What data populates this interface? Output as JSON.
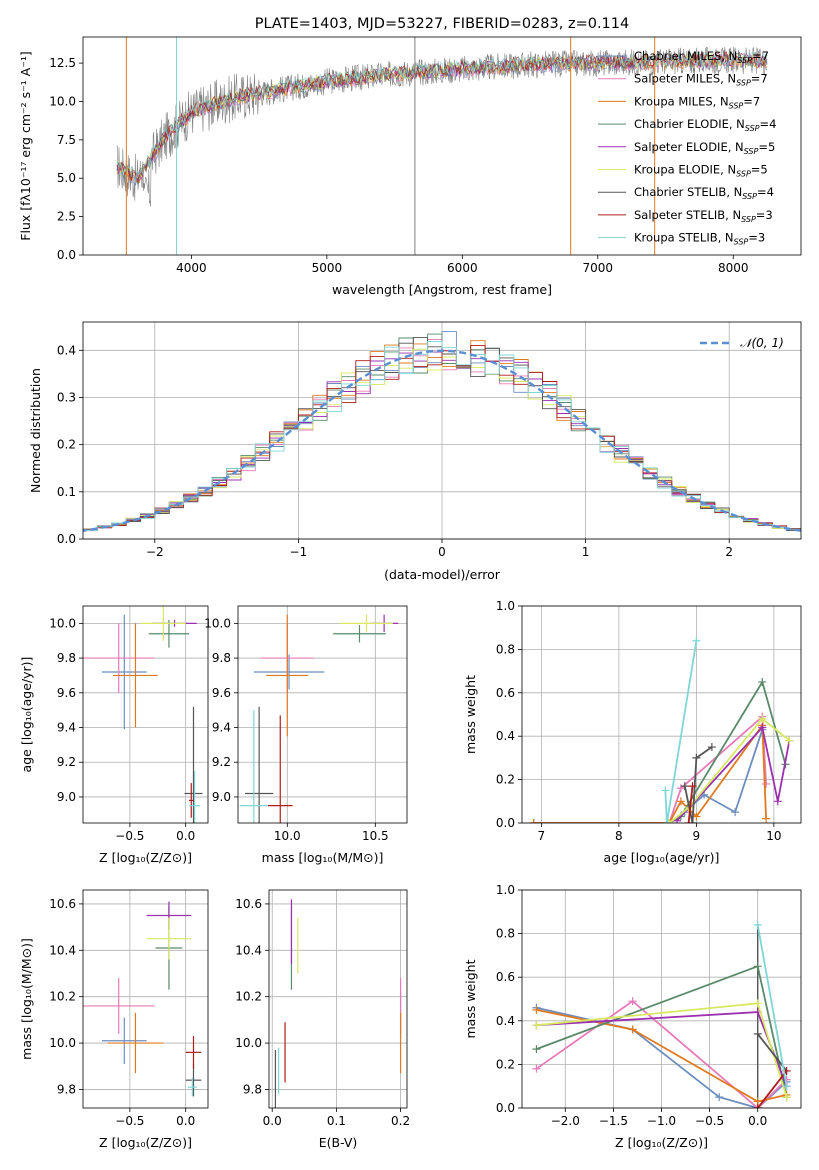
{
  "colors": {
    "chabrier_miles": "#6c8ebf",
    "salpeter_miles": "#e87ab8",
    "kroupa_miles": "#e07a1f",
    "chabrier_elodie": "#5a8a6a",
    "salpeter_elodie": "#9b30b0",
    "kroupa_elodie": "#d8e860",
    "chabrier_stelib": "#555555",
    "salpeter_stelib": "#b01c1c",
    "kroupa_stelib": "#7fd6d6",
    "spectrum": "#808080",
    "normal": "#5b8fd4",
    "grid": "#b0b0b0"
  },
  "chart_data": [
    {
      "type": "line",
      "id": "spectrum",
      "title": "PLATE=1403, MJD=53227, FIBERID=0283, z=0.114",
      "xlabel": "wavelength [Angstrom, rest frame]",
      "ylabel": "Flux [fλ10⁻¹⁷ erg cm⁻² s⁻¹ A⁻¹]",
      "xlim": [
        3200,
        8500
      ],
      "ylim": [
        0,
        14.2
      ],
      "xticks": [
        "4000",
        "5000",
        "6000",
        "7000",
        "8000"
      ],
      "yticks": [
        "0.0",
        "2.5",
        "5.0",
        "7.5",
        "10.0",
        "12.5"
      ],
      "legend_position": "right",
      "series": [
        {
          "name": "Chabrier MILES, N",
          "sub": "SSP",
          "suffix": "=7"
        },
        {
          "name": "Salpeter MILES, N",
          "sub": "SSP",
          "suffix": "=7"
        },
        {
          "name": "Kroupa MILES, N",
          "sub": "SSP",
          "suffix": "=7"
        },
        {
          "name": "Chabrier ELODIE, N",
          "sub": "SSP",
          "suffix": "=4"
        },
        {
          "name": "Salpeter ELODIE, N",
          "sub": "SSP",
          "suffix": "=5"
        },
        {
          "name": "Kroupa ELODIE, N",
          "sub": "SSP",
          "suffix": "=5"
        },
        {
          "name": "Chabrier STELIB, N",
          "sub": "SSP",
          "suffix": "=4"
        },
        {
          "name": "Salpeter STELIB, N",
          "sub": "SSP",
          "suffix": "=3"
        },
        {
          "name": "Kroupa STELIB, N",
          "sub": "SSP",
          "suffix": "=3"
        }
      ],
      "continuum": {
        "x": [
          3450,
          3600,
          3800,
          4000,
          4300,
          4600,
          5000,
          5500,
          6000,
          6500,
          7000,
          7500,
          8000,
          8250
        ],
        "y": [
          5.8,
          4.9,
          7.6,
          9.3,
          10.2,
          10.7,
          11.3,
          11.8,
          12.1,
          12.4,
          12.5,
          12.6,
          12.7,
          12.6
        ]
      }
    },
    {
      "type": "bar",
      "id": "residuals",
      "xlabel": "(data-model)/error",
      "ylabel": "Normed distribution",
      "xlim": [
        -2.5,
        2.5
      ],
      "ylim": [
        0,
        0.46
      ],
      "xticks": [
        "−2",
        "−1",
        "0",
        "1",
        "2"
      ],
      "yticks": [
        "0.0",
        "0.1",
        "0.2",
        "0.3",
        "0.4"
      ],
      "legend": "𝒩(0, 1)",
      "bin_width": 0.1,
      "grid": true
    },
    {
      "type": "scatter",
      "id": "age_vs_Z",
      "xlabel": "Z [log₁₀(Z/Z⊙)]",
      "ylabel": "age  [log₁₀(age/yr)]",
      "xlim": [
        -0.92,
        0.2
      ],
      "ylim": [
        8.85,
        10.1
      ],
      "xticks": [
        "−0.5",
        "0.0"
      ],
      "yticks": [
        "9.0",
        "9.2",
        "9.4",
        "9.6",
        "9.8",
        "10.0"
      ],
      "points": [
        {
          "c": "chabrier_miles",
          "x": -0.55,
          "ex": 0.2,
          "y": 9.72,
          "ey": 0.33
        },
        {
          "c": "salpeter_miles",
          "x": -0.6,
          "ex": 0.32,
          "y": 9.8,
          "ey": 0.2
        },
        {
          "c": "kroupa_miles",
          "x": -0.45,
          "ex": 0.2,
          "y": 9.7,
          "ey": 0.3
        },
        {
          "c": "chabrier_elodie",
          "x": -0.15,
          "ex": 0.18,
          "y": 9.94,
          "ey": 0.08
        },
        {
          "c": "salpeter_elodie",
          "x": -0.1,
          "ex": 0.2,
          "y": 10.0,
          "ey": 0.02
        },
        {
          "c": "kroupa_elodie",
          "x": -0.2,
          "ex": 0.2,
          "y": 10.0,
          "ey": 0.1
        },
        {
          "c": "chabrier_stelib",
          "x": 0.07,
          "ex": 0.08,
          "y": 9.02,
          "ey": 0.5
        },
        {
          "c": "salpeter_stelib",
          "x": 0.05,
          "ex": 0.02,
          "y": 8.98,
          "ey": 0.1
        },
        {
          "c": "kroupa_stelib",
          "x": 0.08,
          "ex": 0.05,
          "y": 8.95,
          "ey": 0.2
        }
      ]
    },
    {
      "type": "scatter",
      "id": "age_vs_mass",
      "xlabel": "mass [log₁₀(M/M⊙)]",
      "ylabel": "",
      "xlim": [
        9.72,
        10.68
      ],
      "ylim": [
        8.85,
        10.1
      ],
      "xticks": [
        "10.0",
        "10.5"
      ],
      "yticks": [
        "9.0",
        "9.2",
        "9.4",
        "9.6",
        "9.8",
        "10.0"
      ],
      "points": [
        {
          "c": "chabrier_miles",
          "x": 10.01,
          "ex": 0.2,
          "y": 9.72,
          "ey": 0.1
        },
        {
          "c": "salpeter_miles",
          "x": 10.0,
          "ex": 0.15,
          "y": 9.8,
          "ey": 0.2
        },
        {
          "c": "kroupa_miles",
          "x": 10.0,
          "ex": 0.12,
          "y": 9.7,
          "ey": 0.35
        },
        {
          "c": "chabrier_elodie",
          "x": 10.41,
          "ex": 0.15,
          "y": 9.94,
          "ey": 0.05
        },
        {
          "c": "salpeter_elodie",
          "x": 10.55,
          "ex": 0.08,
          "y": 10.0,
          "ey": 0.05
        },
        {
          "c": "kroupa_elodie",
          "x": 10.45,
          "ex": 0.15,
          "y": 10.0,
          "ey": 0.05
        },
        {
          "c": "chabrier_stelib",
          "x": 9.84,
          "ex": 0.08,
          "y": 9.02,
          "ey": 0.5
        },
        {
          "c": "salpeter_stelib",
          "x": 9.96,
          "ex": 0.07,
          "y": 8.95,
          "ey": 0.52
        },
        {
          "c": "kroupa_stelib",
          "x": 9.81,
          "ex": 0.08,
          "y": 8.95,
          "ey": 0.55
        }
      ]
    },
    {
      "type": "line",
      "id": "weight_vs_age",
      "xlabel": "age  [log₁₀(age/yr)]",
      "ylabel": "mass weight",
      "xlim": [
        6.75,
        10.35
      ],
      "ylim": [
        0,
        1
      ],
      "xticks": [
        "7",
        "8",
        "9",
        "10"
      ],
      "yticks": [
        "0.0",
        "0.2",
        "0.4",
        "0.6",
        "0.8",
        "1.0"
      ],
      "series": [
        {
          "c": "chabrier_miles",
          "x": [
            6.9,
            8.65,
            8.85,
            9.1,
            9.5,
            9.85
          ],
          "y": [
            0.0,
            0.0,
            0.05,
            0.13,
            0.05,
            0.43
          ]
        },
        {
          "c": "salpeter_miles",
          "x": [
            6.9,
            8.65,
            8.8,
            9.85,
            9.9
          ],
          "y": [
            0.0,
            0.0,
            0.16,
            0.49,
            0.18
          ]
        },
        {
          "c": "kroupa_miles",
          "x": [
            6.9,
            8.65,
            8.8,
            9.0,
            9.85,
            9.9
          ],
          "y": [
            0.0,
            0.0,
            0.1,
            0.03,
            0.45,
            0.02
          ]
        },
        {
          "c": "chabrier_elodie",
          "x": [
            8.65,
            8.8,
            9.85,
            10.15
          ],
          "y": [
            0.0,
            0.03,
            0.65,
            0.27
          ]
        },
        {
          "c": "salpeter_elodie",
          "x": [
            8.75,
            9.85,
            10.05,
            10.2
          ],
          "y": [
            0.01,
            0.44,
            0.1,
            0.38
          ]
        },
        {
          "c": "kroupa_elodie",
          "x": [
            8.65,
            8.9,
            9.85,
            10.2
          ],
          "y": [
            0.0,
            0.07,
            0.48,
            0.38
          ]
        },
        {
          "c": "chabrier_stelib",
          "x": [
            8.85,
            8.95,
            9.0,
            9.2
          ],
          "y": [
            0.17,
            0.0,
            0.3,
            0.35
          ]
        },
        {
          "c": "salpeter_stelib",
          "x": [
            8.9,
            8.95
          ],
          "y": [
            0.0,
            0.17
          ]
        },
        {
          "c": "kroupa_stelib",
          "x": [
            8.6,
            8.62,
            9.0
          ],
          "y": [
            0.15,
            0.0,
            0.84
          ]
        }
      ]
    },
    {
      "type": "scatter",
      "id": "mass_vs_Z",
      "xlabel": "Z [log₁₀(Z/Z⊙)]",
      "ylabel": "mass [log₁₀(M/M⊙)]",
      "xlim": [
        -0.92,
        0.2
      ],
      "ylim": [
        9.72,
        10.66
      ],
      "xticks": [
        "−0.5",
        "0.0"
      ],
      "yticks": [
        "9.8",
        "10.0",
        "10.2",
        "10.4",
        "10.6"
      ],
      "points": [
        {
          "c": "chabrier_miles",
          "x": -0.55,
          "ex": 0.2,
          "y": 10.01,
          "ey": 0.1
        },
        {
          "c": "salpeter_miles",
          "x": -0.6,
          "ex": 0.32,
          "y": 10.16,
          "ey": 0.12
        },
        {
          "c": "kroupa_miles",
          "x": -0.45,
          "ex": 0.25,
          "y": 10.0,
          "ey": 0.13
        },
        {
          "c": "chabrier_elodie",
          "x": -0.15,
          "ex": 0.12,
          "y": 10.41,
          "ey": 0.18
        },
        {
          "c": "salpeter_elodie",
          "x": -0.15,
          "ex": 0.2,
          "y": 10.55,
          "ey": 0.06
        },
        {
          "c": "kroupa_elodie",
          "x": -0.15,
          "ex": 0.2,
          "y": 10.45,
          "ey": 0.09
        },
        {
          "c": "chabrier_stelib",
          "x": 0.07,
          "ex": 0.07,
          "y": 9.84,
          "ey": 0.07
        },
        {
          "c": "salpeter_stelib",
          "x": 0.07,
          "ex": 0.07,
          "y": 9.96,
          "ey": 0.07
        },
        {
          "c": "kroupa_stelib",
          "x": 0.06,
          "ex": 0.04,
          "y": 9.81,
          "ey": 0.04
        }
      ]
    },
    {
      "type": "scatter",
      "id": "mass_vs_ebv",
      "xlabel": "E(B-V)",
      "ylabel": "",
      "xlim": [
        -0.005,
        0.21
      ],
      "ylim": [
        9.72,
        10.66
      ],
      "xticks": [
        "0.0",
        "0.1",
        "0.2"
      ],
      "yticks": [
        "9.8",
        "10.0",
        "10.2",
        "10.4",
        "10.6"
      ],
      "points": [
        {
          "c": "chabrier_miles",
          "x": 0.2,
          "ex": 0,
          "y": 10.12,
          "ey": 0.1
        },
        {
          "c": "salpeter_miles",
          "x": 0.2,
          "ex": 0,
          "y": 10.16,
          "ey": 0.12
        },
        {
          "c": "kroupa_miles",
          "x": 0.2,
          "ex": 0,
          "y": 10.0,
          "ey": 0.13
        },
        {
          "c": "chabrier_elodie",
          "x": 0.03,
          "ex": 0,
          "y": 10.41,
          "ey": 0.18
        },
        {
          "c": "salpeter_elodie",
          "x": 0.03,
          "ex": 0,
          "y": 10.48,
          "ey": 0.14
        },
        {
          "c": "kroupa_elodie",
          "x": 0.04,
          "ex": 0,
          "y": 10.42,
          "ey": 0.12
        },
        {
          "c": "chabrier_stelib",
          "x": 0.005,
          "ex": 0,
          "y": 9.84,
          "ey": 0.13
        },
        {
          "c": "salpeter_stelib",
          "x": 0.02,
          "ex": 0,
          "y": 9.96,
          "ey": 0.13
        },
        {
          "c": "kroupa_stelib",
          "x": 0.01,
          "ex": 0,
          "y": 9.88,
          "ey": 0.1
        }
      ]
    },
    {
      "type": "line",
      "id": "weight_vs_Z",
      "xlabel": "Z [log₁₀(Z/Z⊙)]",
      "ylabel": "mass weight",
      "xlim": [
        -2.45,
        0.45
      ],
      "ylim": [
        0,
        1
      ],
      "xticks": [
        "−2.0",
        "−1.5",
        "−1.0",
        "−0.5",
        "0.0"
      ],
      "yticks": [
        "0.0",
        "0.2",
        "0.4",
        "0.6",
        "0.8",
        "1.0"
      ],
      "series": [
        {
          "c": "chabrier_miles",
          "x": [
            -2.3,
            -1.3,
            -0.4,
            0.0,
            0.3
          ],
          "y": [
            0.46,
            0.36,
            0.05,
            0.0,
            0.12
          ]
        },
        {
          "c": "salpeter_miles",
          "x": [
            -2.3,
            -1.3,
            0.0,
            0.3
          ],
          "y": [
            0.18,
            0.49,
            0.0,
            0.13
          ]
        },
        {
          "c": "kroupa_miles",
          "x": [
            -2.3,
            -1.3,
            0.0,
            0.3
          ],
          "y": [
            0.45,
            0.36,
            0.03,
            0.06
          ]
        },
        {
          "c": "chabrier_elodie",
          "x": [
            -2.3,
            0.0,
            0.3
          ],
          "y": [
            0.27,
            0.65,
            0.05
          ]
        },
        {
          "c": "salpeter_elodie",
          "x": [
            -2.3,
            0.0,
            0.3
          ],
          "y": [
            0.38,
            0.44,
            0.1
          ]
        },
        {
          "c": "kroupa_elodie",
          "x": [
            -2.3,
            0.0,
            0.3
          ],
          "y": [
            0.38,
            0.48,
            0.05
          ]
        },
        {
          "c": "chabrier_stelib",
          "x": [
            0.0,
            0.3
          ],
          "y": [
            0.34,
            0.17
          ]
        },
        {
          "c": "salpeter_stelib",
          "x": [
            0.0,
            0.3
          ],
          "y": [
            0.0,
            0.17
          ]
        },
        {
          "c": "kroupa_stelib",
          "x": [
            0.0,
            0.3
          ],
          "y": [
            0.84,
            0.1
          ]
        }
      ],
      "vbar": {
        "x": 0.0,
        "y": [
          0.0,
          0.84
        ]
      }
    }
  ]
}
